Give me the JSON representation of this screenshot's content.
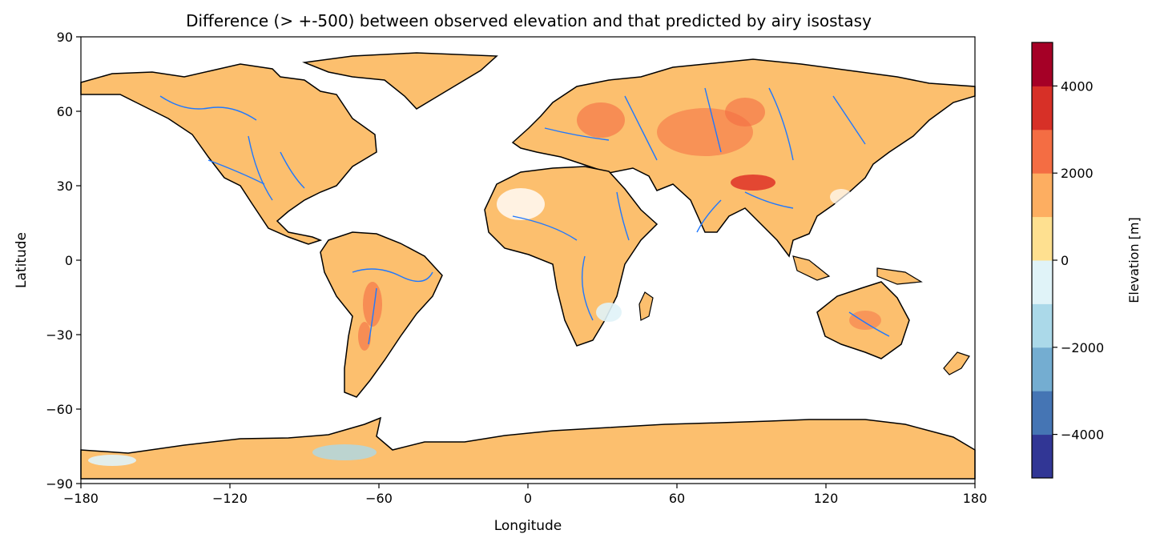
{
  "title": "Difference (> +-500) between observed elevation and that predicted by airy isostasy",
  "xlabel": "Longitude",
  "ylabel": "Latitude",
  "xticks": [
    -180,
    -120,
    -60,
    0,
    60,
    120,
    180
  ],
  "yticks": [
    90,
    60,
    30,
    0,
    -30,
    -60,
    -90
  ],
  "xlim": [
    -180,
    180
  ],
  "ylim": [
    -90,
    90
  ],
  "colorbar": {
    "label": "Elevation [m]",
    "range": [
      -5000,
      5000
    ],
    "ticks": [
      -4000,
      -2000,
      0,
      2000,
      4000
    ],
    "colors": [
      "#313695",
      "#4575b4",
      "#74add1",
      "#abd9e9",
      "#e0f3f8",
      "#fee090",
      "#fdae61",
      "#f46d43",
      "#d73027",
      "#a50026"
    ]
  },
  "colors": {
    "coastline": "#000000",
    "rivers": "#1f78ff",
    "land_fill": "#fcbf6e"
  }
}
